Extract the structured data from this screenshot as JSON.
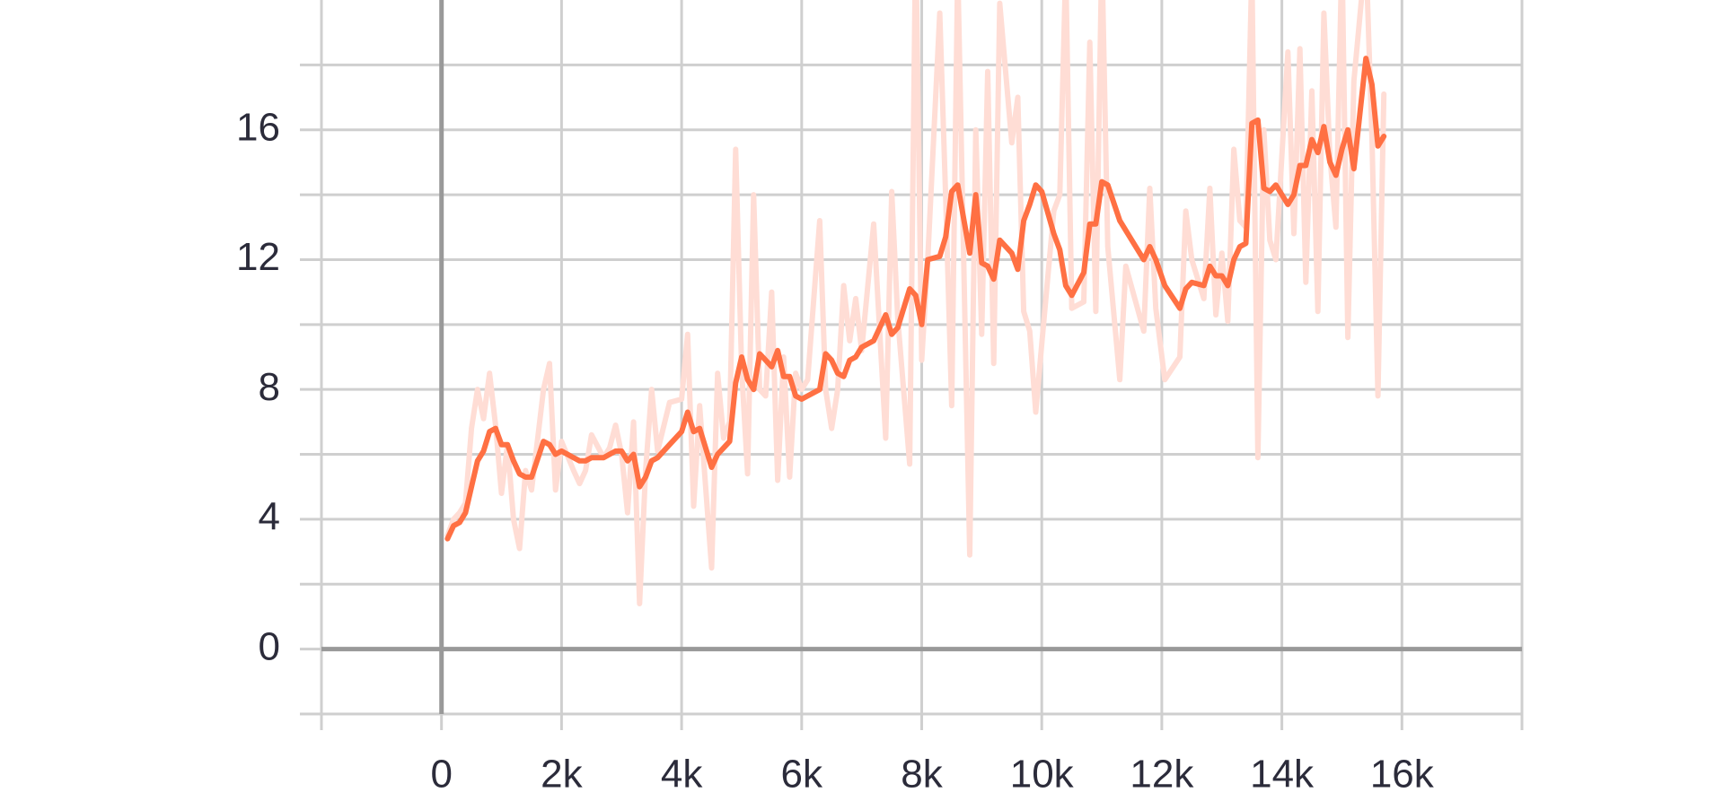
{
  "chart_data": {
    "type": "line",
    "xlim": [
      -2000,
      18000
    ],
    "ylim": [
      -2,
      20
    ],
    "xticks": [
      0,
      {
        "value": 2000,
        "label": "2k"
      },
      {
        "value": 4000,
        "label": "4k"
      },
      {
        "value": 6000,
        "label": "6k"
      },
      {
        "value": 8000,
        "label": "8k"
      },
      {
        "value": 10000,
        "label": "10k"
      },
      {
        "value": 12000,
        "label": "12k"
      },
      {
        "value": 14000,
        "label": "14k"
      },
      {
        "value": 16000,
        "label": "16k"
      }
    ],
    "xminorticks": [
      -2000,
      18000
    ],
    "yticks": [
      0,
      4,
      8,
      12,
      16
    ],
    "yminorticks": [
      -2,
      2,
      6,
      10,
      14,
      18
    ],
    "grid": true,
    "x": [
      100,
      200,
      300,
      400,
      500,
      600,
      700,
      800,
      900,
      1000,
      1100,
      1200,
      1300,
      1400,
      1500,
      1700,
      1800,
      1900,
      2000,
      2200,
      2300,
      2400,
      2500,
      2700,
      2800,
      2900,
      3000,
      3100,
      3200,
      3300,
      3400,
      3500,
      3600,
      3800,
      4000,
      4100,
      4200,
      4300,
      4500,
      4600,
      4700,
      4800,
      4900,
      5000,
      5100,
      5200,
      5300,
      5400,
      5500,
      5600,
      5700,
      5800,
      5900,
      6000,
      6100,
      6300,
      6400,
      6500,
      6600,
      6700,
      6800,
      6900,
      7000,
      7200,
      7400,
      7500,
      7600,
      7800,
      7900,
      8000,
      8100,
      8300,
      8400,
      8500,
      8600,
      8800,
      8900,
      9000,
      9100,
      9200,
      9300,
      9500,
      9600,
      9700,
      9800,
      9900,
      10000,
      10200,
      10300,
      10400,
      10500,
      10700,
      10800,
      10900,
      11000,
      11100,
      11300,
      11400,
      11700,
      11800,
      11900,
      12050,
      12300,
      12400,
      12500,
      12700,
      12800,
      12900,
      13000,
      13100,
      13200,
      13300,
      13400,
      13500,
      13600,
      13700,
      13800,
      13900,
      14100,
      14200,
      14300,
      14400,
      14500,
      14600,
      14700,
      14800,
      14900,
      15000,
      15100,
      15200,
      15400,
      15500,
      15600,
      15700
    ],
    "series": [
      {
        "color": "#ffddd5",
        "values": [
          3.5,
          4.0,
          4.2,
          4.5,
          6.8,
          8.0,
          7.1,
          8.5,
          6.9,
          4.8,
          6.3,
          4.0,
          3.1,
          5.5,
          4.9,
          8.0,
          8.8,
          4.9,
          6.4,
          5.5,
          5.1,
          5.5,
          6.6,
          5.9,
          6.2,
          6.9,
          6.0,
          4.2,
          7.0,
          1.4,
          5.5,
          8.0,
          6.1,
          7.6,
          7.7,
          9.7,
          4.4,
          7.5,
          2.5,
          8.5,
          6.5,
          7.0,
          15.4,
          8.6,
          5.4,
          14.0,
          8.0,
          7.8,
          11.0,
          5.2,
          9.0,
          5.3,
          8.5,
          8.0,
          8.3,
          13.2,
          8.0,
          6.8,
          8.0,
          11.2,
          9.5,
          10.8,
          9.2,
          13.1,
          6.5,
          14.1,
          10.2,
          5.7,
          22.0,
          8.9,
          12.0,
          19.6,
          13.9,
          7.5,
          21.0,
          2.9,
          16.0,
          9.7,
          17.8,
          8.8,
          19.9,
          15.6,
          17.0,
          10.4,
          9.8,
          7.3,
          9.4,
          13.5,
          14.0,
          21.0,
          10.5,
          10.7,
          18.7,
          10.4,
          21.5,
          12.4,
          8.3,
          11.8,
          9.8,
          14.2,
          10.5,
          8.3,
          9.0,
          13.5,
          12.0,
          10.8,
          14.2,
          10.3,
          12.2,
          10.1,
          15.4,
          13.2,
          13.0,
          21.0,
          5.9,
          16.0,
          12.6,
          12.0,
          18.4,
          12.8,
          18.5,
          11.3,
          17.2,
          10.4,
          19.6,
          15.2,
          13.0,
          21.5,
          9.6,
          17.5,
          21.5,
          15.8,
          7.8,
          17.1
        ]
      },
      {
        "color": "#ff7043",
        "values": [
          3.4,
          3.8,
          3.9,
          4.2,
          5.0,
          5.8,
          6.1,
          6.7,
          6.8,
          6.3,
          6.3,
          5.8,
          5.4,
          5.3,
          5.3,
          6.4,
          6.3,
          6.0,
          6.1,
          5.9,
          5.8,
          5.8,
          5.9,
          5.9,
          6.0,
          6.1,
          6.1,
          5.8,
          6.0,
          5.0,
          5.3,
          5.8,
          5.9,
          6.3,
          6.7,
          7.3,
          6.7,
          6.8,
          5.6,
          6.0,
          6.2,
          6.4,
          8.2,
          9.0,
          8.3,
          8.0,
          9.1,
          8.9,
          8.7,
          9.2,
          8.4,
          8.4,
          7.8,
          7.7,
          7.8,
          8.0,
          9.1,
          8.9,
          8.5,
          8.4,
          8.9,
          9.0,
          9.3,
          9.5,
          10.3,
          9.7,
          9.9,
          11.1,
          10.9,
          10.0,
          12.0,
          12.1,
          12.7,
          14.1,
          14.3,
          12.2,
          14.0,
          11.9,
          11.8,
          11.4,
          12.6,
          12.2,
          11.7,
          13.2,
          13.7,
          14.3,
          14.1,
          12.8,
          12.3,
          11.2,
          10.9,
          11.6,
          13.1,
          13.1,
          14.4,
          14.3,
          13.2,
          12.9,
          12.0,
          12.4,
          12.0,
          11.2,
          10.5,
          11.1,
          11.3,
          11.2,
          11.8,
          11.5,
          11.5,
          11.2,
          12.0,
          12.4,
          12.5,
          16.2,
          16.3,
          14.2,
          14.1,
          14.3,
          13.7,
          14.0,
          14.9,
          14.9,
          15.7,
          15.3,
          16.1,
          15.0,
          14.6,
          15.4,
          16.0,
          14.8,
          18.2,
          17.4,
          15.5,
          15.8
        ]
      }
    ]
  }
}
